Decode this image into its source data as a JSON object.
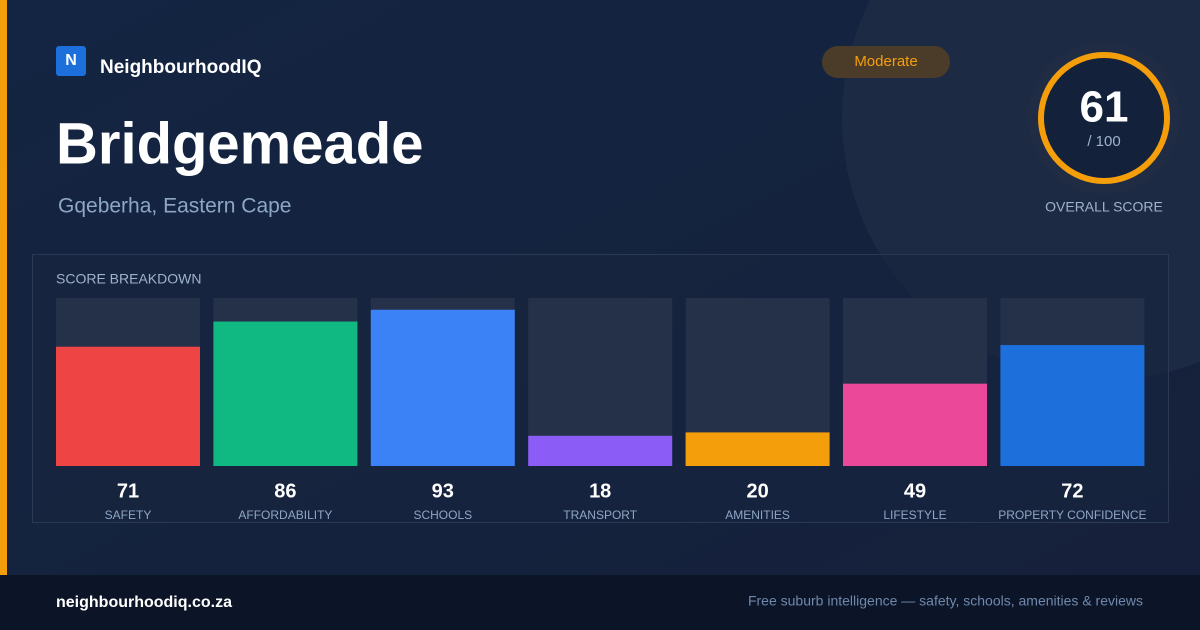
{
  "brand": {
    "logo": "N",
    "name": "NeighbourhoodIQ"
  },
  "badge": "Moderate",
  "title": "Bridgemeade",
  "subtitle": "Gqeberha, Eastern Cape",
  "score": {
    "value": "61",
    "max": "/ 100",
    "label": "OVERALL SCORE"
  },
  "chart_data": {
    "type": "bar",
    "title": "SCORE BREAKDOWN",
    "categories": [
      "SAFETY",
      "AFFORDABILITY",
      "SCHOOLS",
      "TRANSPORT",
      "AMENITIES",
      "LIFESTYLE",
      "PROPERTY CONFIDENCE"
    ],
    "values": [
      71,
      86,
      93,
      18,
      20,
      49,
      72
    ],
    "colors": [
      "#ef4444",
      "#10b981",
      "#3b82f6",
      "#8b5cf6",
      "#f59e0b",
      "#ec4899",
      "#1d6fdc"
    ],
    "ylim": [
      0,
      100
    ]
  },
  "footer": {
    "site": "neighbourhoodiq.co.za",
    "tagline": "Free suburb intelligence — safety, schools, amenities & reviews"
  }
}
